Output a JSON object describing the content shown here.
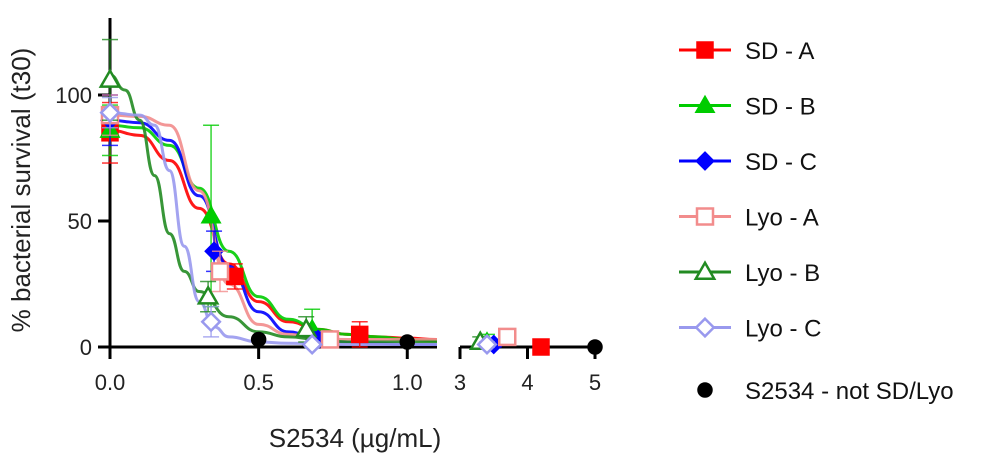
{
  "chart_data": {
    "type": "scatter",
    "title": "",
    "xlabel": "S2534 (µg/mL)",
    "ylabel": "% bacterial survival (t30)",
    "x_segments": [
      {
        "range": [
          0,
          1.1
        ],
        "ticks": [
          0,
          0.5,
          1.0
        ],
        "tick_labels": [
          "0.0",
          "0.5",
          "1.0"
        ]
      },
      {
        "range": [
          3,
          5
        ],
        "ticks": [
          3,
          4,
          5
        ],
        "tick_labels": [
          "3",
          "4",
          "5"
        ]
      }
    ],
    "ylim": [
      0,
      130
    ],
    "y_ticks": [
      0,
      50,
      100
    ],
    "y_tick_labels": [
      "0",
      "50",
      "100"
    ],
    "grid": false,
    "legend_position": "right",
    "series": [
      {
        "name": "SD - A",
        "color": "#ff0000",
        "marker": "square",
        "filled": true,
        "points": [
          {
            "x": 0,
            "y": 85,
            "err": 12
          },
          {
            "x": 0.42,
            "y": 28,
            "err": 5
          },
          {
            "x": 0.84,
            "y": 5,
            "err": 5
          },
          {
            "x": 4.2,
            "y": 0,
            "err": 0
          }
        ],
        "curve": [
          [
            0,
            86
          ],
          [
            0.1,
            84
          ],
          [
            0.2,
            74
          ],
          [
            0.3,
            55
          ],
          [
            0.4,
            33
          ],
          [
            0.5,
            18
          ],
          [
            0.6,
            10
          ],
          [
            0.7,
            7
          ],
          [
            0.8,
            5
          ],
          [
            0.9,
            4
          ],
          [
            1.0,
            3.5
          ],
          [
            1.1,
            3
          ]
        ]
      },
      {
        "name": "SD - B",
        "color": "#00cc00",
        "marker": "triangle",
        "filled": true,
        "points": [
          {
            "x": 0,
            "y": 86,
            "err": 10
          },
          {
            "x": 0.34,
            "y": 52,
            "err": 36
          },
          {
            "x": 0.68,
            "y": 7,
            "err": 8
          },
          {
            "x": 3.4,
            "y": 2,
            "err": 3
          }
        ],
        "curve": [
          [
            0,
            88
          ],
          [
            0.1,
            87
          ],
          [
            0.2,
            80
          ],
          [
            0.3,
            63
          ],
          [
            0.4,
            38
          ],
          [
            0.5,
            20
          ],
          [
            0.6,
            11
          ],
          [
            0.7,
            7
          ],
          [
            0.8,
            5
          ],
          [
            0.9,
            4
          ],
          [
            1.0,
            3
          ],
          [
            1.1,
            2.5
          ]
        ]
      },
      {
        "name": "SD - C",
        "color": "#0000ff",
        "marker": "diamond",
        "filled": true,
        "points": [
          {
            "x": 0,
            "y": 90,
            "err": 10
          },
          {
            "x": 0.35,
            "y": 38,
            "err": 8
          },
          {
            "x": 0.7,
            "y": 3,
            "err": 3
          },
          {
            "x": 3.5,
            "y": 1,
            "err": 1
          }
        ],
        "curve": [
          [
            0,
            90
          ],
          [
            0.1,
            89
          ],
          [
            0.2,
            82
          ],
          [
            0.3,
            60
          ],
          [
            0.4,
            32
          ],
          [
            0.5,
            14
          ],
          [
            0.6,
            6
          ],
          [
            0.7,
            3
          ],
          [
            0.8,
            2
          ],
          [
            0.9,
            1.5
          ],
          [
            1.0,
            1
          ],
          [
            1.1,
            1
          ]
        ]
      },
      {
        "name": "Lyo - A",
        "color": "#f28c8c",
        "marker": "square",
        "filled": false,
        "points": [
          {
            "x": 0,
            "y": 92,
            "err": 8
          },
          {
            "x": 0.37,
            "y": 30,
            "err": 8
          },
          {
            "x": 0.74,
            "y": 3,
            "err": 3
          },
          {
            "x": 3.7,
            "y": 4,
            "err": 2
          }
        ],
        "curve": [
          [
            0,
            92
          ],
          [
            0.1,
            91.5
          ],
          [
            0.2,
            88
          ],
          [
            0.3,
            62
          ],
          [
            0.4,
            25
          ],
          [
            0.5,
            9
          ],
          [
            0.6,
            5
          ],
          [
            0.7,
            3.5
          ],
          [
            0.8,
            3
          ],
          [
            0.9,
            3
          ],
          [
            1.0,
            3
          ],
          [
            1.1,
            3
          ]
        ]
      },
      {
        "name": "Lyo - B",
        "color": "#228b22",
        "marker": "triangle",
        "filled": false,
        "points": [
          {
            "x": 0,
            "y": 106,
            "err": 16
          },
          {
            "x": 0.33,
            "y": 20,
            "err": 6
          },
          {
            "x": 0.66,
            "y": 7,
            "err": 5
          },
          {
            "x": 3.3,
            "y": 2,
            "err": 2
          }
        ],
        "curve": [
          [
            0,
            108
          ],
          [
            0.05,
            102
          ],
          [
            0.1,
            90
          ],
          [
            0.15,
            68
          ],
          [
            0.2,
            45
          ],
          [
            0.25,
            30
          ],
          [
            0.3,
            22
          ],
          [
            0.4,
            12
          ],
          [
            0.5,
            6
          ],
          [
            0.6,
            4
          ],
          [
            0.7,
            3
          ],
          [
            0.8,
            2
          ],
          [
            0.9,
            2
          ],
          [
            1.0,
            2
          ],
          [
            1.1,
            2
          ]
        ]
      },
      {
        "name": "Lyo - C",
        "color": "#9999ee",
        "marker": "diamond",
        "filled": false,
        "points": [
          {
            "x": 0,
            "y": 93,
            "err": 6
          },
          {
            "x": 0.34,
            "y": 10,
            "err": 6
          },
          {
            "x": 0.68,
            "y": 1,
            "err": 1
          },
          {
            "x": 3.4,
            "y": 1,
            "err": 1
          }
        ],
        "curve": [
          [
            0,
            93
          ],
          [
            0.1,
            92
          ],
          [
            0.15,
            88
          ],
          [
            0.2,
            70
          ],
          [
            0.25,
            40
          ],
          [
            0.3,
            18
          ],
          [
            0.35,
            8
          ],
          [
            0.4,
            4
          ],
          [
            0.5,
            2
          ],
          [
            0.6,
            1.5
          ],
          [
            0.8,
            1
          ],
          [
            1.1,
            1
          ]
        ]
      },
      {
        "name": "S2534 - not SD/Lyo",
        "color": "#000000",
        "marker": "circle",
        "filled": true,
        "points": [
          {
            "x": 0.5,
            "y": 3,
            "err": 0
          },
          {
            "x": 1.0,
            "y": 2,
            "err": 0
          },
          {
            "x": 5,
            "y": 0,
            "err": 0
          }
        ],
        "curve": []
      }
    ]
  }
}
